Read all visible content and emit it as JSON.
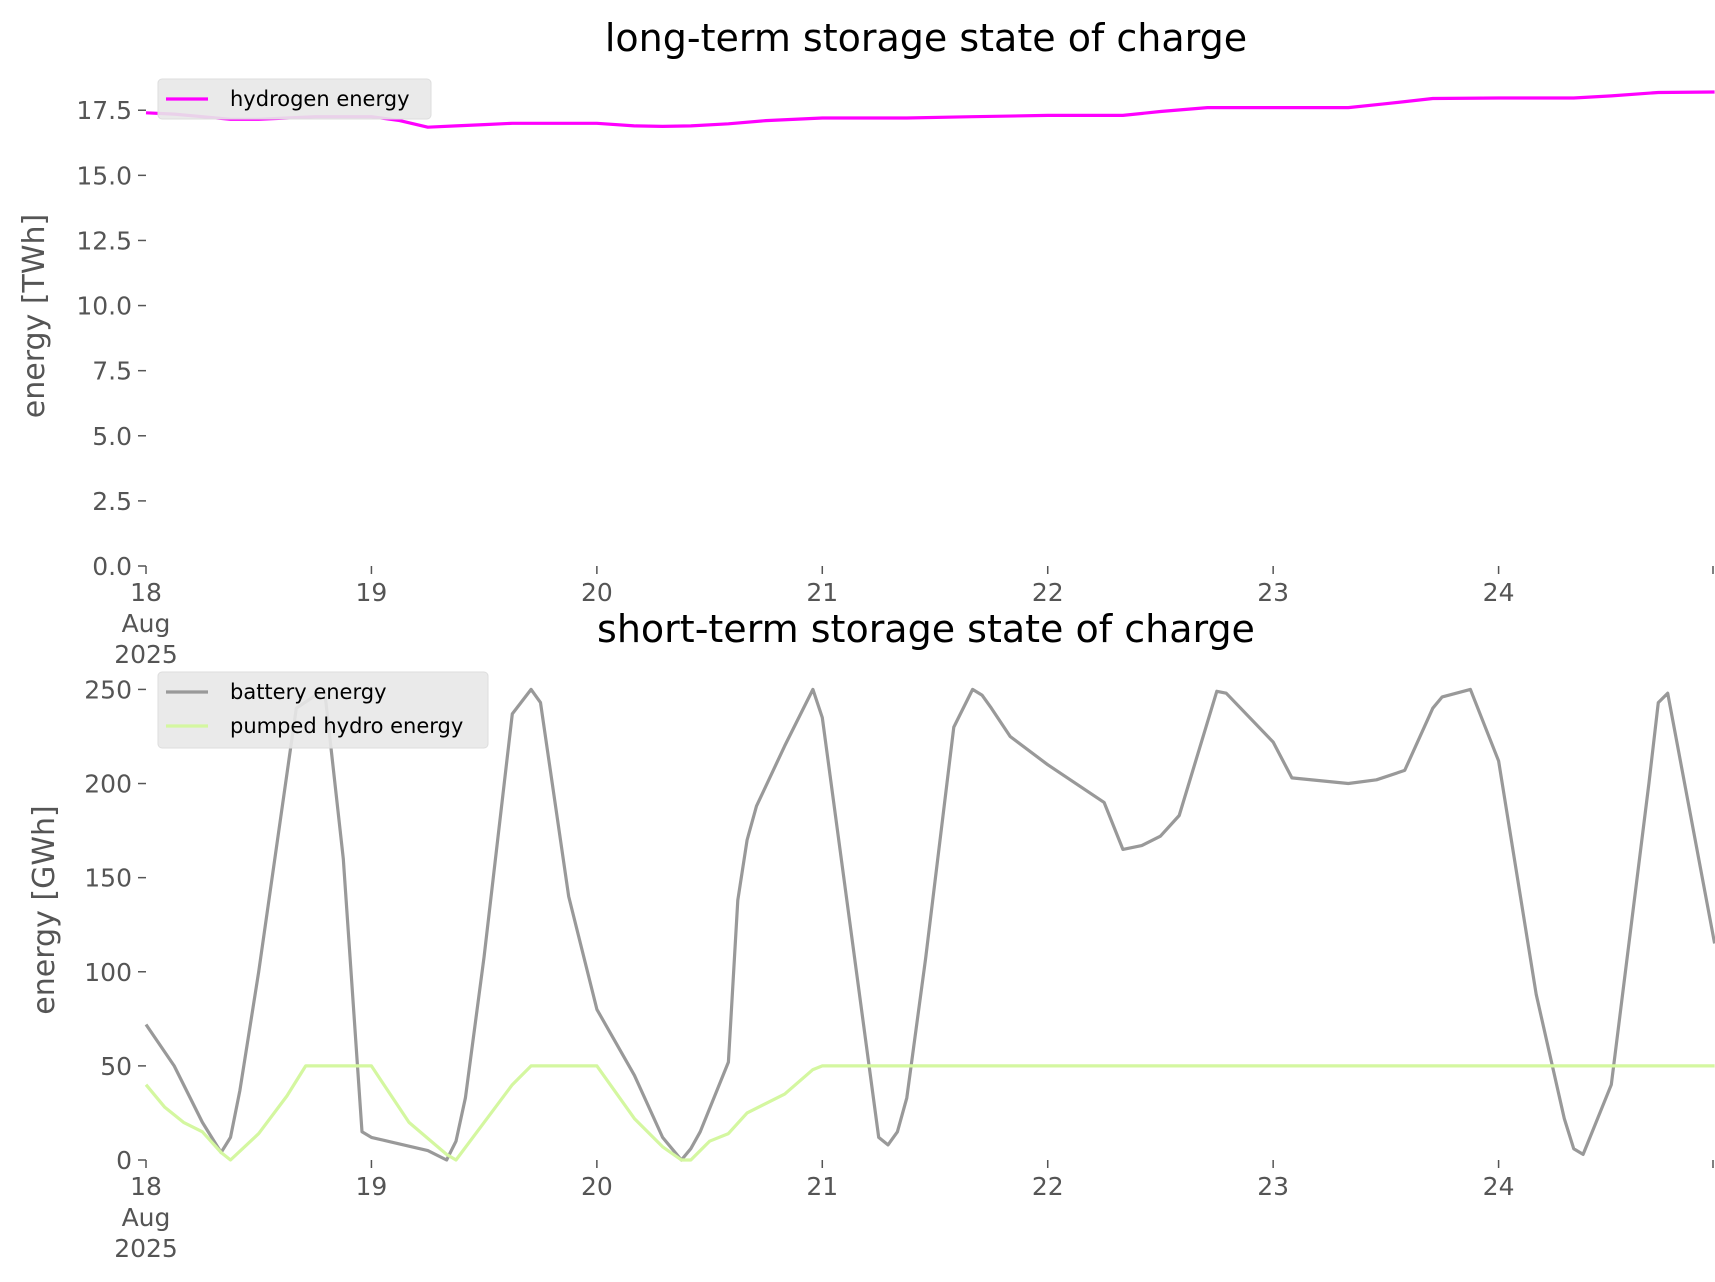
{
  "chart_data": [
    {
      "type": "line",
      "title": "long-term storage state of charge",
      "xlabel": "",
      "ylabel": "energy [TWh]",
      "ylim": [
        0,
        18.2
      ],
      "yticks": [
        "0.0",
        "2.5",
        "5.0",
        "7.5",
        "10.0",
        "12.5",
        "15.0",
        "17.5"
      ],
      "ytick_values": [
        0,
        2.5,
        5,
        7.5,
        10,
        12.5,
        15,
        17.5
      ],
      "xlim": [
        0,
        6.96
      ],
      "xticks": [
        {
          "day": 0,
          "lines": [
            "18",
            "Aug",
            "2025"
          ]
        },
        {
          "day": 1,
          "lines": [
            "19"
          ]
        },
        {
          "day": 2,
          "lines": [
            "20"
          ]
        },
        {
          "day": 3,
          "lines": [
            "21"
          ]
        },
        {
          "day": 4,
          "lines": [
            "22"
          ]
        },
        {
          "day": 5,
          "lines": [
            "23"
          ]
        },
        {
          "day": 6,
          "lines": [
            "24"
          ]
        }
      ],
      "grid": false,
      "legend": "top-left",
      "series": [
        {
          "name": "hydrogen energy",
          "color": "#ff00ff",
          "x": [
            "2025-08-18 00:00",
            "2025-08-18 03:00",
            "2025-08-18 06:00",
            "2025-08-18 09:00",
            "2025-08-18 12:00",
            "2025-08-18 15:00",
            "2025-08-18 18:00",
            "2025-08-18 21:00",
            "2025-08-19 00:00",
            "2025-08-19 03:00",
            "2025-08-19 06:00",
            "2025-08-19 09:00",
            "2025-08-19 12:00",
            "2025-08-19 15:00",
            "2025-08-19 18:00",
            "2025-08-20 00:00",
            "2025-08-20 04:00",
            "2025-08-20 07:00",
            "2025-08-20 10:00",
            "2025-08-20 14:00",
            "2025-08-20 18:00",
            "2025-08-21 00:00",
            "2025-08-21 09:00",
            "2025-08-21 16:00",
            "2025-08-22 00:00",
            "2025-08-22 08:00",
            "2025-08-22 12:00",
            "2025-08-22 17:00",
            "2025-08-23 00:00",
            "2025-08-23 08:00",
            "2025-08-23 12:00",
            "2025-08-23 17:00",
            "2025-08-24 00:00",
            "2025-08-24 08:00",
            "2025-08-24 12:00",
            "2025-08-24 17:00",
            "2025-08-24 23:00"
          ],
          "y": [
            17.4,
            17.35,
            17.25,
            17.15,
            17.15,
            17.2,
            17.25,
            17.25,
            17.25,
            17.1,
            16.85,
            16.9,
            16.95,
            17.0,
            17.0,
            17.0,
            16.9,
            16.88,
            16.9,
            16.98,
            17.1,
            17.2,
            17.2,
            17.25,
            17.3,
            17.3,
            17.45,
            17.6,
            17.6,
            17.6,
            17.75,
            17.95,
            17.97,
            17.97,
            18.05,
            18.18,
            18.2
          ]
        }
      ]
    },
    {
      "type": "line",
      "title": "short-term storage state of charge",
      "xlabel": "",
      "ylabel": "energy [GWh]",
      "ylim": [
        0,
        255
      ],
      "yticks": [
        "0",
        "50",
        "100",
        "150",
        "200",
        "250"
      ],
      "ytick_values": [
        0,
        50,
        100,
        150,
        200,
        250
      ],
      "xlim": [
        0,
        6.96
      ],
      "xticks": [
        {
          "day": 0,
          "lines": [
            "18",
            "Aug",
            "2025"
          ]
        },
        {
          "day": 1,
          "lines": [
            "19"
          ]
        },
        {
          "day": 2,
          "lines": [
            "20"
          ]
        },
        {
          "day": 3,
          "lines": [
            "21"
          ]
        },
        {
          "day": 4,
          "lines": [
            "22"
          ]
        },
        {
          "day": 5,
          "lines": [
            "23"
          ]
        },
        {
          "day": 6,
          "lines": [
            "24"
          ]
        }
      ],
      "grid": false,
      "legend": "top-left",
      "series": [
        {
          "name": "battery energy",
          "color": "#999999",
          "x": [
            "2025-08-18 00:00",
            "2025-08-18 03:00",
            "2025-08-18 06:00",
            "2025-08-18 08:00",
            "2025-08-18 09:00",
            "2025-08-18 10:00",
            "2025-08-18 12:00",
            "2025-08-18 16:00",
            "2025-08-18 19:00",
            "2025-08-18 21:00",
            "2025-08-18 23:00",
            "2025-08-19 00:00",
            "2025-08-19 06:00",
            "2025-08-19 08:00",
            "2025-08-19 09:00",
            "2025-08-19 10:00",
            "2025-08-19 12:00",
            "2025-08-19 15:00",
            "2025-08-19 17:00",
            "2025-08-19 18:00",
            "2025-08-19 21:00",
            "2025-08-20 00:00",
            "2025-08-20 04:00",
            "2025-08-20 07:00",
            "2025-08-20 09:00",
            "2025-08-20 10:00",
            "2025-08-20 11:00",
            "2025-08-20 14:00",
            "2025-08-20 15:00",
            "2025-08-20 16:00",
            "2025-08-20 17:00",
            "2025-08-20 20:00",
            "2025-08-20 23:00",
            "2025-08-21 00:00",
            "2025-08-21 06:00",
            "2025-08-21 07:00",
            "2025-08-21 08:00",
            "2025-08-21 09:00",
            "2025-08-21 11:00",
            "2025-08-21 14:00",
            "2025-08-21 16:00",
            "2025-08-21 17:00",
            "2025-08-21 18:00",
            "2025-08-21 20:00",
            "2025-08-22 00:00",
            "2025-08-22 06:00",
            "2025-08-22 08:00",
            "2025-08-22 10:00",
            "2025-08-22 12:00",
            "2025-08-22 14:00",
            "2025-08-22 18:00",
            "2025-08-22 19:00",
            "2025-08-23 00:00",
            "2025-08-23 02:00",
            "2025-08-23 08:00",
            "2025-08-23 11:00",
            "2025-08-23 14:00",
            "2025-08-23 17:00",
            "2025-08-23 18:00",
            "2025-08-23 21:00",
            "2025-08-24 00:00",
            "2025-08-24 04:00",
            "2025-08-24 07:00",
            "2025-08-24 08:00",
            "2025-08-24 09:00",
            "2025-08-24 12:00",
            "2025-08-24 16:00",
            "2025-08-24 17:00",
            "2025-08-24 18:00",
            "2025-08-24 23:00"
          ],
          "y": [
            72,
            50,
            20,
            4,
            12,
            37,
            100,
            240,
            250,
            160,
            15,
            12,
            5,
            0,
            10,
            33,
            108,
            237,
            250,
            243,
            140,
            80,
            45,
            12,
            0,
            6,
            15,
            52,
            138,
            170,
            188,
            220,
            250,
            235,
            12,
            8,
            15,
            33,
            107,
            230,
            250,
            247,
            240,
            225,
            210,
            190,
            165,
            167,
            172,
            183,
            249,
            248,
            222,
            203,
            200,
            202,
            207,
            240,
            246,
            250,
            212,
            88,
            22,
            6,
            3,
            40,
            200,
            243,
            248,
            115
          ]
        },
        {
          "name": "pumped hydro energy",
          "color": "#d4f7a0",
          "x": [
            "2025-08-18 00:00",
            "2025-08-18 02:00",
            "2025-08-18 04:00",
            "2025-08-18 06:00",
            "2025-08-18 08:00",
            "2025-08-18 09:00",
            "2025-08-18 12:00",
            "2025-08-18 15:00",
            "2025-08-18 17:00",
            "2025-08-18 21:00",
            "2025-08-19 00:00",
            "2025-08-19 04:00",
            "2025-08-19 08:00",
            "2025-08-19 09:00",
            "2025-08-19 12:00",
            "2025-08-19 15:00",
            "2025-08-19 17:00",
            "2025-08-19 21:00",
            "2025-08-20 00:00",
            "2025-08-20 04:00",
            "2025-08-20 07:00",
            "2025-08-20 09:00",
            "2025-08-20 10:00",
            "2025-08-20 12:00",
            "2025-08-20 14:00",
            "2025-08-20 16:00",
            "2025-08-20 20:00",
            "2025-08-20 23:00",
            "2025-08-21 00:00",
            "2025-08-24 23:00"
          ],
          "y": [
            40,
            28,
            20,
            15,
            4,
            0,
            14,
            34,
            50,
            50,
            50,
            20,
            3,
            0,
            20,
            40,
            50,
            50,
            50,
            22,
            7,
            0,
            0,
            10,
            14,
            25,
            35,
            48,
            50,
            50
          ]
        }
      ]
    }
  ]
}
